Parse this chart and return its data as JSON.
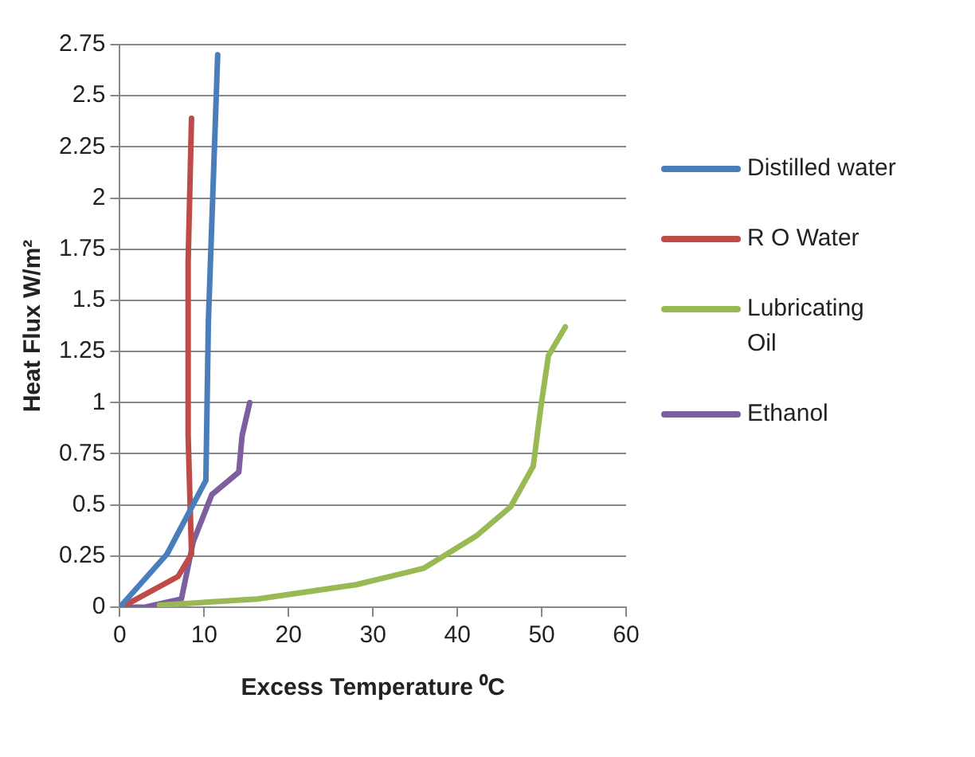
{
  "chart_data": {
    "type": "line",
    "xlabel": "Excess Temperature ⁰C",
    "ylabel": "Heat Flux W/m²",
    "xlim": [
      0,
      60
    ],
    "xticks": [
      0,
      10,
      20,
      30,
      40,
      50,
      60
    ],
    "ylim": [
      0,
      2.75
    ],
    "yticks": [
      0,
      0.25,
      0.5,
      0.75,
      1,
      1.25,
      1.5,
      1.75,
      2,
      2.25,
      2.5,
      2.75
    ],
    "grid": "y",
    "legend": "right",
    "marker": "none",
    "line_style": "solid",
    "series": [
      {
        "name": "Distilled water",
        "color": "#4a7ebb",
        "x": [
          0,
          5.6,
          10.2,
          10.5,
          11.6
        ],
        "values": [
          0,
          0.26,
          0.62,
          1.4,
          2.7
        ]
      },
      {
        "name": "R O Water",
        "color": "#be4b48",
        "x": [
          0,
          1.1,
          6.9,
          8.5,
          8.1,
          8.1,
          8.5
        ],
        "values": [
          0,
          0.02,
          0.15,
          0.26,
          0.84,
          1.69,
          2.39
        ]
      },
      {
        "name": "Lubricating Oil",
        "color": "#98b954",
        "x": [
          4.7,
          16.3,
          28,
          36,
          42.3,
          46.3,
          49,
          49.9,
          50.8,
          52.8
        ],
        "values": [
          0.01,
          0.04,
          0.11,
          0.19,
          0.35,
          0.49,
          0.69,
          0.98,
          1.23,
          1.37
        ]
      },
      {
        "name": "Ethanol",
        "color": "#7d5fa0",
        "x": [
          0,
          3,
          7.3,
          8.7,
          10.9,
          14.1,
          14.5,
          15.4
        ],
        "values": [
          0,
          0,
          0.04,
          0.32,
          0.55,
          0.66,
          0.84,
          1
        ]
      }
    ]
  }
}
